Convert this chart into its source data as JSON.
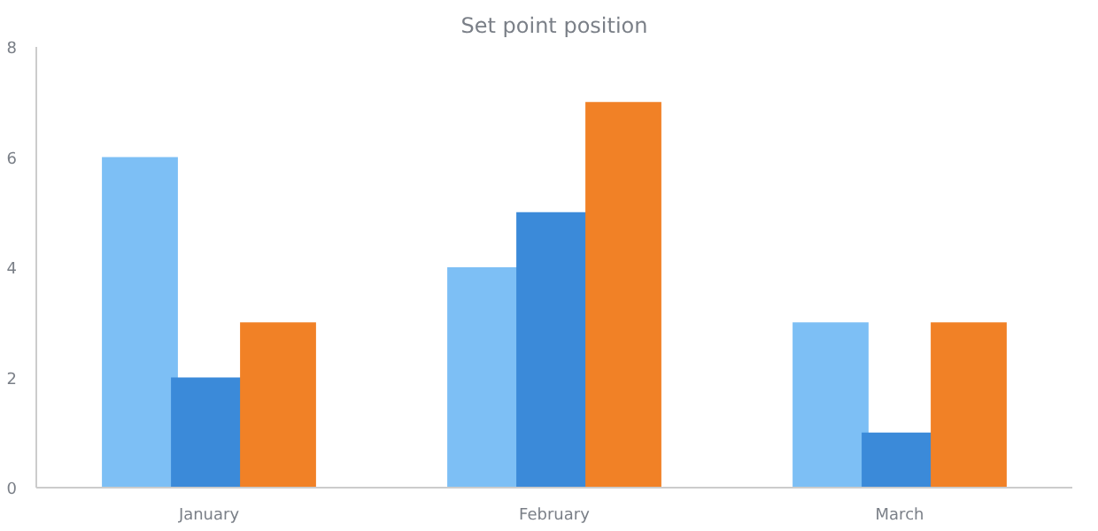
{
  "chart_data": {
    "type": "bar",
    "title": "Set point position",
    "categories": [
      "January",
      "February",
      "March"
    ],
    "series": [
      {
        "color": "#7dbff5",
        "values": [
          6,
          4,
          3
        ]
      },
      {
        "color": "#3b8ad9",
        "values": [
          2,
          5,
          1
        ]
      },
      {
        "color": "#f18126",
        "values": [
          3,
          7,
          3
        ]
      }
    ],
    "ylim": [
      0,
      8
    ],
    "yticks": [
      0,
      2,
      4,
      6,
      8
    ],
    "grid": false
  }
}
